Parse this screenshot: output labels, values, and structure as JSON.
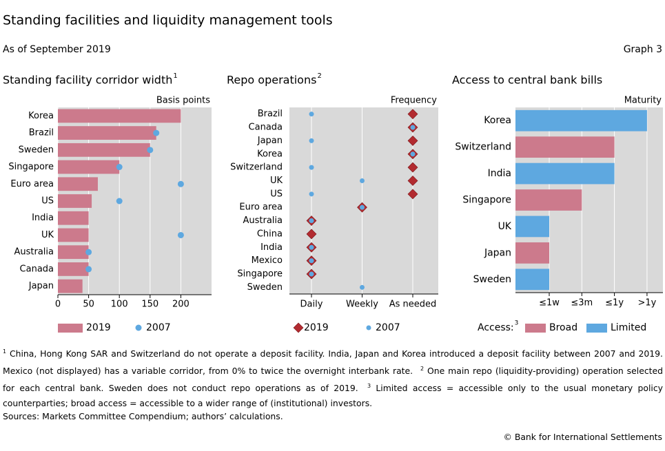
{
  "header": {
    "title": "Standing facilities and liquidity management tools",
    "subtitle": "As of September 2019",
    "graph_label": "Graph 3"
  },
  "chart_data": [
    {
      "type": "bar",
      "title": "Standing facility corridor width",
      "title_note": "1",
      "axis_label": "Basis points",
      "categories": [
        "Korea",
        "Brazil",
        "Sweden",
        "Singapore",
        "Euro area",
        "US",
        "India",
        "UK",
        "Australia",
        "Canada",
        "Japan"
      ],
      "series": [
        {
          "name": "2019",
          "marker": "bar",
          "color": "#cc7a8c",
          "values": [
            200,
            160,
            150,
            100,
            65,
            55,
            50,
            50,
            50,
            50,
            40
          ]
        },
        {
          "name": "2007",
          "marker": "dot",
          "color": "#5ea8e0",
          "values": [
            null,
            160,
            150,
            100,
            200,
            100,
            null,
            200,
            50,
            50,
            null
          ]
        }
      ],
      "xlim": [
        0,
        250
      ],
      "xticks": [
        0,
        50,
        100,
        150,
        200
      ],
      "grid": true
    },
    {
      "type": "dot",
      "title": "Repo operations",
      "title_note": "2",
      "axis_label": "Frequency",
      "categories": [
        "Brazil",
        "Canada",
        "Japan",
        "Korea",
        "Switzerland",
        "UK",
        "US",
        "Euro area",
        "Australia",
        "China",
        "India",
        "Mexico",
        "Singapore",
        "Sweden"
      ],
      "x_categories": [
        "Daily",
        "Weekly",
        "As needed"
      ],
      "series": [
        {
          "name": "2019",
          "marker": "diamond",
          "color": "#b22b30",
          "values": [
            "As needed",
            "As needed",
            "As needed",
            "As needed",
            "As needed",
            "As needed",
            "As needed",
            "Weekly",
            "Daily",
            "Daily",
            "Daily",
            "Daily",
            "Daily",
            null
          ]
        },
        {
          "name": "2007",
          "marker": "dot",
          "color": "#5ea8e0",
          "values": [
            "Daily",
            "As needed",
            "Daily",
            "As needed",
            "Daily",
            "Weekly",
            "Daily",
            "Weekly",
            "Daily",
            null,
            "Daily",
            "Daily",
            "Daily",
            "Weekly"
          ]
        }
      ],
      "grid": true
    },
    {
      "type": "bar",
      "title": "Access to central bank bills",
      "axis_label": "Maturity",
      "categories": [
        "Korea",
        "Switzerland",
        "India",
        "Singapore",
        "UK",
        "Japan",
        "Sweden"
      ],
      "x_categories": [
        "≤1w",
        "≤3m",
        "≤1y",
        ">1y"
      ],
      "legend_title": "Access:",
      "legend_title_note": "3",
      "series": [
        {
          "name": "Broad",
          "marker": "bar",
          "color": "#cc7a8c",
          "values": [
            null,
            "≤1y",
            null,
            "≤3m",
            null,
            "≤1w",
            null
          ]
        },
        {
          "name": "Limited",
          "marker": "bar",
          "color": "#5ea8e0",
          "values": [
            ">1y",
            null,
            "≤1y",
            null,
            "≤1w",
            null,
            "≤1w"
          ]
        }
      ],
      "grid": true
    }
  ],
  "footnotes": [
    {
      "mark": "1",
      "text": "China, Hong Kong SAR and Switzerland do not operate a deposit facility. India, Japan and Korea introduced a deposit facility between 2007 and 2019. Mexico (not displayed) has a variable corridor, from 0% to twice the overnight interbank rate."
    },
    {
      "mark": "2",
      "text": "One main repo (liquidity-providing) operation selected for each central bank. Sweden does not conduct repo operations as of 2019."
    },
    {
      "mark": "3",
      "text": "Limited access = accessible only to the usual monetary policy counterparties; broad access = accessible to a wider range of (institutional) investors."
    }
  ],
  "sources": "Sources: Markets Committee Compendium; authors’ calculations.",
  "copyright": "© Bank for International Settlements"
}
